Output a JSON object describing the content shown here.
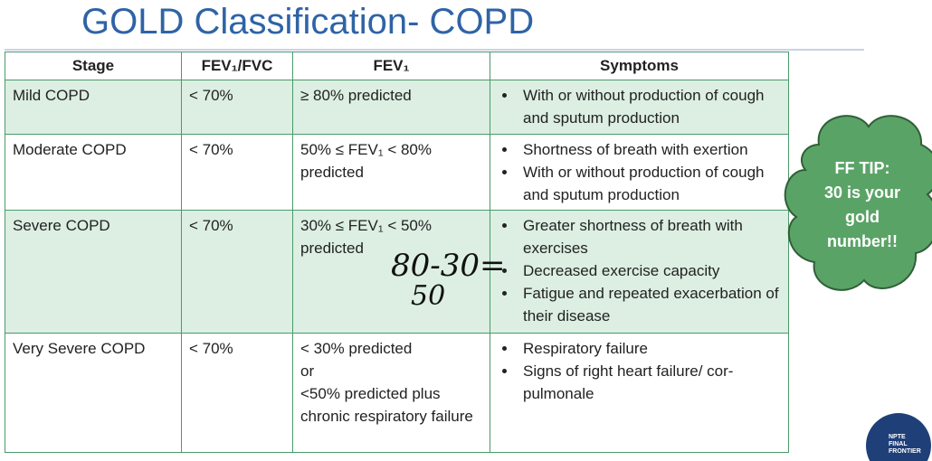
{
  "title": "GOLD Classification- COPD",
  "table": {
    "headers": [
      "Stage",
      "FEV₁/FVC",
      "FEV₁",
      "Symptoms"
    ],
    "rows": [
      {
        "stage": "Mild COPD",
        "ratio": "< 70%",
        "fev1": [
          "≥ 80% predicted"
        ],
        "symptoms": [
          "With or without production of cough and sputum production"
        ]
      },
      {
        "stage": "Moderate COPD",
        "ratio": "< 70%",
        "fev1": [
          "50% ≤ FEV₁ < 80% predicted"
        ],
        "symptoms": [
          "Shortness of breath with exertion",
          "With or without production of cough and sputum production"
        ]
      },
      {
        "stage": "Severe COPD",
        "ratio": "< 70%",
        "fev1": [
          "30% ≤ FEV₁ < 50% predicted"
        ],
        "symptoms": [
          "Greater shortness of breath with exercises",
          "Decreased exercise capacity",
          "Fatigue and repeated exacerbation of their disease"
        ]
      },
      {
        "stage": "Very Severe COPD",
        "ratio": "< 70%",
        "fev1": [
          "< 30% predicted",
          "or",
          "<50% predicted plus chronic respiratory failure"
        ],
        "symptoms": [
          "Respiratory failure",
          "Signs of right heart failure/ cor-pulmonale"
        ]
      }
    ]
  },
  "handwriting": [
    "80-30=",
    "50"
  ],
  "tip": [
    "FF TIP:",
    "30 is your",
    "gold",
    "number!!"
  ],
  "logo": [
    "NPTE",
    "FINAL",
    "FRONTIER"
  ]
}
